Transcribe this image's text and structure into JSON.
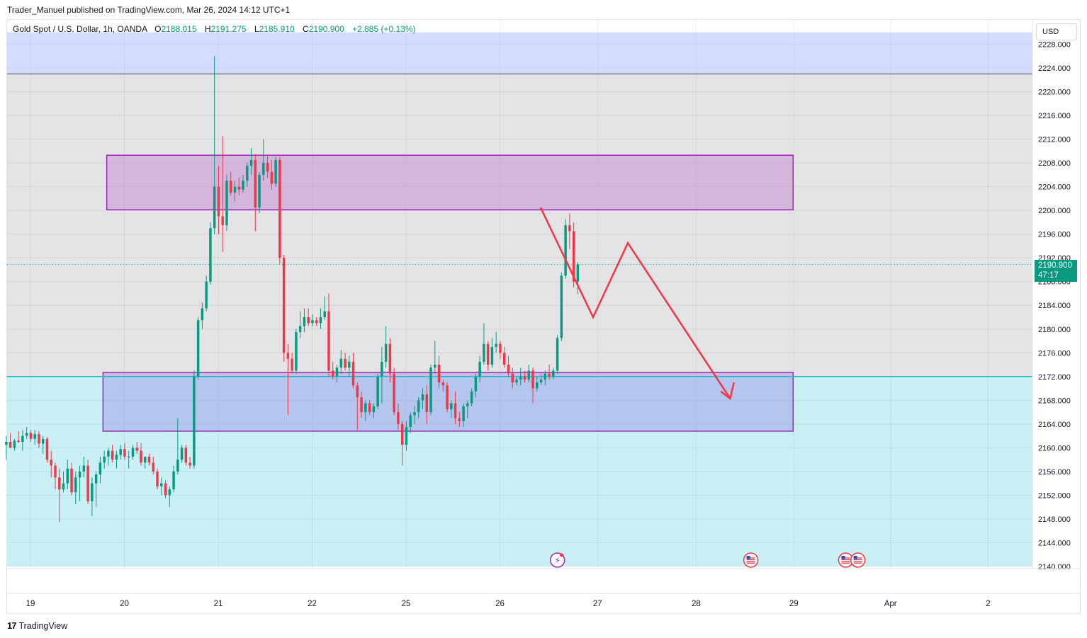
{
  "header": {
    "publisher": "Trader_Manuel published on TradingView.com, Mar 26, 2024 14:12 UTC+1"
  },
  "legend": {
    "symbol": "Gold Spot / U.S. Dollar, 1h, OANDA",
    "o_label": "O",
    "o_value": "2188.015",
    "h_label": "H",
    "h_value": "2191.275",
    "l_label": "L",
    "l_value": "2185.910",
    "c_label": "C",
    "c_value": "2190.900",
    "change": "+2.885 (+0.13%)"
  },
  "currency": "USD",
  "price_badge": {
    "price": "2190.900",
    "countdown": "47:17"
  },
  "brand": {
    "logo": "17",
    "name": "TradingView"
  },
  "colors": {
    "up": "#089981",
    "down": "#f23645",
    "accent_line": "#2ab8c8",
    "zone_border": "#9c27b0",
    "upper_band": "#d4ddff",
    "lower_band": "#c9f0f5",
    "middle_band": "#e4e4e6",
    "projection": "#f23645"
  },
  "chart_data": {
    "type": "candlestick",
    "title": "Gold Spot / U.S. Dollar, 1h, OANDA",
    "y_ticks": [
      2228,
      2224,
      2220,
      2216,
      2212,
      2208,
      2204,
      2200,
      2196,
      2192,
      2188,
      2184,
      2180,
      2176,
      2172,
      2168,
      2164,
      2160,
      2156,
      2152,
      2148,
      2144,
      2140
    ],
    "y_tick_labels": [
      "2228.000",
      "2224.000",
      "2220.000",
      "2216.000",
      "2212.000",
      "2208.000",
      "2204.000",
      "2200.000",
      "2196.000",
      "2192.000",
      "2188.000",
      "2184.000",
      "2180.000",
      "2176.000",
      "2172.000",
      "2168.000",
      "2164.000",
      "2160.000",
      "2156.000",
      "2152.000",
      "2148.000",
      "2144.000",
      "2140.000"
    ],
    "ylim": [
      2140,
      2230
    ],
    "x_ticks": [
      {
        "label": "19",
        "pos": 0
      },
      {
        "label": "20",
        "pos": 1
      },
      {
        "label": "21",
        "pos": 2
      },
      {
        "label": "22",
        "pos": 3
      },
      {
        "label": "25",
        "pos": 4
      },
      {
        "label": "26",
        "pos": 5
      },
      {
        "label": "27",
        "pos": 6.04
      },
      {
        "label": "28",
        "pos": 7.09
      },
      {
        "label": "29",
        "pos": 8.13
      },
      {
        "label": "Apr",
        "pos": 9.16
      },
      {
        "label": "2",
        "pos": 10.2
      }
    ],
    "horizontal_lines": [
      {
        "price": 2223,
        "color": "#787b86",
        "name": "resistance"
      },
      {
        "price": 2172,
        "color": "#2ab8c8",
        "name": "support"
      },
      {
        "price": 2190.9,
        "color": "#089981",
        "style": "dotted",
        "name": "last price"
      }
    ],
    "bands": [
      {
        "from": 2223,
        "to": 2230,
        "color": "#d4ddff"
      },
      {
        "from": 2172,
        "to": 2223,
        "color": "#e4e4e6"
      },
      {
        "from": 2140,
        "to": 2172,
        "color": "#c9f0f5"
      }
    ],
    "zones": [
      {
        "name": "supply",
        "top": 2209.3,
        "bottom": 2200.1,
        "x_from": 0.82,
        "x_to": 8.13,
        "fill": "rgba(190,120,210,0.42)"
      },
      {
        "name": "demand",
        "top": 2172.7,
        "bottom": 2162.8,
        "x_from": 0.78,
        "x_to": 8.13,
        "fill": "rgba(150,130,225,0.38)"
      }
    ],
    "projection_path": [
      [
        5.44,
        2200.5
      ],
      [
        6.0,
        2182.0
      ],
      [
        6.37,
        2194.5
      ],
      [
        7.46,
        2168.3
      ]
    ],
    "projection_arrowhead": [
      [
        7.36,
        2169.5
      ],
      [
        7.46,
        2168.3
      ],
      [
        7.5,
        2171.0
      ]
    ],
    "events": [
      {
        "type": "earnings",
        "x": 5.62,
        "glyph": "⚡"
      },
      {
        "type": "us-economic",
        "x": 7.68
      },
      {
        "type": "us-economic",
        "x": 8.69
      },
      {
        "type": "us-economic",
        "x": 8.82
      }
    ],
    "candles_per_day": 23,
    "first_index_offset": -0.25,
    "ohlc": [
      [
        2160.5,
        2162.0,
        2158.0,
        2161.0
      ],
      [
        2161.0,
        2162.5,
        2160.0,
        2160.0
      ],
      [
        2160.0,
        2161.5,
        2159.5,
        2161.2
      ],
      [
        2161.2,
        2162.8,
        2160.8,
        2161.0
      ],
      [
        2161.0,
        2163.0,
        2159.5,
        2162.0
      ],
      [
        2162.0,
        2163.5,
        2161.5,
        2162.5
      ],
      [
        2162.5,
        2163.0,
        2161.0,
        2161.5
      ],
      [
        2161.5,
        2163.0,
        2160.5,
        2162.3
      ],
      [
        2162.3,
        2162.8,
        2160.0,
        2160.7
      ],
      [
        2160.7,
        2162.0,
        2159.0,
        2161.5
      ],
      [
        2161.5,
        2161.8,
        2157.5,
        2158.0
      ],
      [
        2158.0,
        2159.5,
        2155.0,
        2157.0
      ],
      [
        2157.0,
        2157.5,
        2153.0,
        2155.0
      ],
      [
        2155.0,
        2156.5,
        2147.5,
        2153.0
      ],
      [
        2153.0,
        2156.0,
        2152.5,
        2154.0
      ],
      [
        2154.0,
        2158.0,
        2153.0,
        2156.5
      ],
      [
        2156.5,
        2157.5,
        2152.0,
        2152.5
      ],
      [
        2152.5,
        2156.0,
        2150.5,
        2155.0
      ],
      [
        2155.0,
        2157.0,
        2151.0,
        2156.0
      ],
      [
        2156.0,
        2158.5,
        2155.0,
        2157.0
      ],
      [
        2157.0,
        2158.0,
        2150.5,
        2151.0
      ],
      [
        2151.0,
        2155.0,
        2148.5,
        2154.0
      ],
      [
        2154.0,
        2156.0,
        2150.0,
        2155.5
      ],
      [
        2155.5,
        2158.5,
        2154.0,
        2157.5
      ],
      [
        2157.5,
        2159.5,
        2156.5,
        2158.5
      ],
      [
        2158.5,
        2160.0,
        2157.0,
        2159.5
      ],
      [
        2159.5,
        2160.5,
        2157.5,
        2158.0
      ],
      [
        2158.0,
        2159.5,
        2156.5,
        2158.8
      ],
      [
        2158.8,
        2160.5,
        2158.0,
        2159.8
      ],
      [
        2159.8,
        2160.8,
        2158.0,
        2158.5
      ],
      [
        2158.5,
        2159.5,
        2156.5,
        2158.5
      ],
      [
        2158.5,
        2160.5,
        2158.0,
        2160.0
      ],
      [
        2160.0,
        2161.0,
        2159.0,
        2159.5
      ],
      [
        2159.5,
        2160.8,
        2157.0,
        2157.5
      ],
      [
        2157.5,
        2158.5,
        2156.5,
        2158.5
      ],
      [
        2158.5,
        2159.0,
        2157.0,
        2157.5
      ],
      [
        2157.5,
        2158.5,
        2155.5,
        2156.0
      ],
      [
        2156.0,
        2156.5,
        2153.0,
        2153.5
      ],
      [
        2153.5,
        2155.0,
        2152.0,
        2154.0
      ],
      [
        2154.0,
        2154.5,
        2151.5,
        2152.0
      ],
      [
        2152.0,
        2153.5,
        2150.0,
        2153.0
      ],
      [
        2153.0,
        2157.0,
        2152.5,
        2156.0
      ],
      [
        2156.0,
        2165.0,
        2155.5,
        2158.0
      ],
      [
        2158.0,
        2160.5,
        2157.5,
        2160.0
      ],
      [
        2160.0,
        2160.5,
        2157.0,
        2157.5
      ],
      [
        2157.5,
        2158.5,
        2156.5,
        2157.0
      ],
      [
        2157.0,
        2173.0,
        2156.5,
        2172.0
      ],
      [
        2172.0,
        2182.0,
        2171.5,
        2181.5
      ],
      [
        2181.5,
        2184.5,
        2180.0,
        2183.5
      ],
      [
        2183.5,
        2189.0,
        2183.0,
        2188.0
      ],
      [
        2188.0,
        2198.0,
        2187.5,
        2197.0
      ],
      [
        2197.0,
        2226.0,
        2196.0,
        2204.0
      ],
      [
        2204.0,
        2207.5,
        2196.0,
        2199.0
      ],
      [
        2199.0,
        2212.5,
        2193.0,
        2197.5
      ],
      [
        2197.5,
        2206.0,
        2196.5,
        2205.0
      ],
      [
        2205.0,
        2206.5,
        2202.5,
        2203.0
      ],
      [
        2203.0,
        2205.0,
        2201.5,
        2204.0
      ],
      [
        2204.0,
        2205.5,
        2202.5,
        2203.5
      ],
      [
        2203.5,
        2206.0,
        2203.0,
        2205.0
      ],
      [
        2205.0,
        2208.0,
        2204.0,
        2207.5
      ],
      [
        2207.5,
        2210.5,
        2206.0,
        2208.5
      ],
      [
        2208.5,
        2209.5,
        2196.5,
        2200.5
      ],
      [
        2200.5,
        2206.5,
        2199.5,
        2206.0
      ],
      [
        2206.0,
        2212.0,
        2205.0,
        2208.0
      ],
      [
        2208.0,
        2209.0,
        2205.5,
        2206.5
      ],
      [
        2206.5,
        2208.5,
        2203.5,
        2204.5
      ],
      [
        2204.5,
        2209.0,
        2204.0,
        2208.5
      ],
      [
        2208.5,
        2209.0,
        2191.0,
        2192.0
      ],
      [
        2192.0,
        2192.5,
        2174.5,
        2176.0
      ],
      [
        2176.0,
        2177.5,
        2165.5,
        2175.0
      ],
      [
        2175.0,
        2176.0,
        2172.5,
        2173.0
      ],
      [
        2173.0,
        2180.0,
        2172.5,
        2179.5
      ],
      [
        2179.5,
        2183.0,
        2178.5,
        2180.5
      ],
      [
        2180.5,
        2183.5,
        2179.5,
        2182.0
      ],
      [
        2182.0,
        2183.5,
        2180.5,
        2181.0
      ],
      [
        2181.0,
        2182.5,
        2180.5,
        2181.5
      ],
      [
        2181.5,
        2182.0,
        2180.5,
        2181.0
      ],
      [
        2181.0,
        2183.5,
        2180.0,
        2182.0
      ],
      [
        2182.0,
        2185.5,
        2181.5,
        2183.0
      ],
      [
        2183.0,
        2186.0,
        2172.0,
        2173.0
      ],
      [
        2173.0,
        2174.5,
        2171.5,
        2172.0
      ],
      [
        2172.0,
        2174.0,
        2171.0,
        2173.5
      ],
      [
        2173.5,
        2176.5,
        2172.5,
        2175.0
      ],
      [
        2175.0,
        2176.0,
        2173.0,
        2173.5
      ],
      [
        2173.5,
        2175.5,
        2172.0,
        2174.5
      ],
      [
        2174.5,
        2176.0,
        2170.0,
        2170.5
      ],
      [
        2170.5,
        2171.0,
        2163.0,
        2168.5
      ],
      [
        2168.5,
        2169.5,
        2165.0,
        2166.0
      ],
      [
        2166.0,
        2168.0,
        2164.5,
        2167.5
      ],
      [
        2167.5,
        2168.0,
        2165.5,
        2166.0
      ],
      [
        2166.0,
        2167.5,
        2165.0,
        2167.0
      ],
      [
        2167.0,
        2172.5,
        2166.5,
        2172.0
      ],
      [
        2172.0,
        2177.0,
        2167.5,
        2174.5
      ],
      [
        2174.5,
        2180.5,
        2173.5,
        2177.5
      ],
      [
        2177.5,
        2178.5,
        2171.0,
        2172.5
      ],
      [
        2172.5,
        2173.5,
        2165.5,
        2166.0
      ],
      [
        2166.0,
        2167.5,
        2163.0,
        2164.0
      ],
      [
        2164.0,
        2164.5,
        2157.0,
        2160.5
      ],
      [
        2160.5,
        2164.5,
        2159.5,
        2163.5
      ],
      [
        2163.5,
        2166.0,
        2162.5,
        2165.5
      ],
      [
        2165.5,
        2167.0,
        2164.0,
        2166.0
      ],
      [
        2166.0,
        2168.5,
        2165.0,
        2168.0
      ],
      [
        2168.0,
        2170.0,
        2166.5,
        2169.0
      ],
      [
        2169.0,
        2170.5,
        2164.0,
        2166.0
      ],
      [
        2166.0,
        2174.0,
        2165.5,
        2173.5
      ],
      [
        2173.5,
        2178.0,
        2172.5,
        2174.0
      ],
      [
        2174.0,
        2175.5,
        2170.0,
        2171.0
      ],
      [
        2171.0,
        2171.5,
        2169.5,
        2170.5
      ],
      [
        2170.5,
        2171.0,
        2166.0,
        2166.5
      ],
      [
        2166.5,
        2168.0,
        2165.0,
        2167.5
      ],
      [
        2167.5,
        2169.5,
        2164.0,
        2165.0
      ],
      [
        2165.0,
        2166.0,
        2163.5,
        2164.5
      ],
      [
        2164.5,
        2167.5,
        2163.5,
        2167.0
      ],
      [
        2167.0,
        2168.0,
        2165.0,
        2167.5
      ],
      [
        2167.5,
        2170.0,
        2167.0,
        2169.5
      ],
      [
        2169.5,
        2172.5,
        2168.5,
        2172.0
      ],
      [
        2172.0,
        2175.5,
        2171.0,
        2174.5
      ],
      [
        2174.5,
        2181.0,
        2174.0,
        2177.5
      ],
      [
        2177.5,
        2178.0,
        2173.0,
        2174.0
      ],
      [
        2174.0,
        2178.5,
        2173.5,
        2177.0
      ],
      [
        2177.0,
        2179.5,
        2176.0,
        2177.5
      ],
      [
        2177.5,
        2178.0,
        2175.0,
        2176.0
      ],
      [
        2176.0,
        2177.0,
        2173.5,
        2174.0
      ],
      [
        2174.0,
        2175.5,
        2172.0,
        2172.5
      ],
      [
        2172.5,
        2173.5,
        2170.0,
        2171.0
      ],
      [
        2171.0,
        2172.0,
        2170.5,
        2171.5
      ],
      [
        2171.5,
        2173.5,
        2170.5,
        2172.0
      ],
      [
        2172.0,
        2173.0,
        2171.0,
        2171.5
      ],
      [
        2171.5,
        2174.0,
        2171.0,
        2173.0
      ],
      [
        2173.0,
        2173.5,
        2167.5,
        2170.0
      ],
      [
        2170.0,
        2172.0,
        2169.5,
        2171.0
      ],
      [
        2171.0,
        2172.5,
        2170.5,
        2171.5
      ],
      [
        2171.5,
        2173.0,
        2170.5,
        2172.5
      ],
      [
        2172.5,
        2174.0,
        2171.5,
        2172.0
      ],
      [
        2172.0,
        2173.5,
        2171.5,
        2173.0
      ],
      [
        2173.0,
        2179.0,
        2172.5,
        2178.5
      ],
      [
        2178.5,
        2189.5,
        2178.0,
        2189.0
      ],
      [
        2189.0,
        2198.5,
        2188.5,
        2197.5
      ],
      [
        2197.5,
        2199.5,
        2193.5,
        2196.5
      ],
      [
        2196.5,
        2198.0,
        2187.0,
        2188.015
      ],
      [
        2188.015,
        2191.275,
        2185.91,
        2190.9
      ]
    ]
  }
}
